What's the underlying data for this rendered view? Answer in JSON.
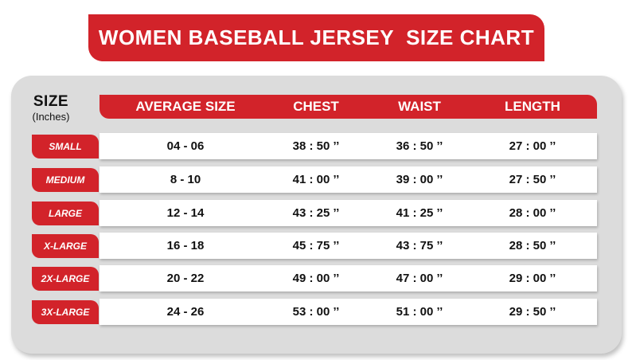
{
  "title": "WOMEN BASEBALL JERSEY  SIZE CHART",
  "size_header": {
    "title": "SIZE",
    "unit": "(Inches)"
  },
  "columns": [
    "AVERAGE SIZE",
    "CHEST",
    "WAIST",
    "LENGTH"
  ],
  "rows": [
    {
      "label": "SMALL",
      "values": [
        "04 - 06",
        "38 : 50 ’’",
        "36 : 50 ’’",
        "27 : 00 ’’"
      ]
    },
    {
      "label": "MEDIUM",
      "values": [
        "8 - 10",
        "41 : 00 ’’",
        "39 : 00 ’’",
        "27 : 50 ’’"
      ]
    },
    {
      "label": "LARGE",
      "values": [
        "12 - 14",
        "43 : 25 ’’",
        "41 : 25 ’’",
        "28 : 00 ’’"
      ]
    },
    {
      "label": "X-LARGE",
      "values": [
        "16 - 18",
        "45 : 75 ’’",
        "43 : 75 ’’",
        "28 : 50 ’’"
      ]
    },
    {
      "label": "2X-LARGE",
      "values": [
        "20 - 22",
        "49 : 00 ’’",
        "47 : 00 ’’",
        "29 : 00 ’’"
      ]
    },
    {
      "label": "3X-LARGE",
      "values": [
        "24 - 26",
        "53 : 00 ’’",
        "51 : 00 ’’",
        "29 : 50 ’’"
      ]
    }
  ],
  "colors": {
    "accent": "#d2232a",
    "panel": "#dcdcdc",
    "row": "#ffffff"
  }
}
